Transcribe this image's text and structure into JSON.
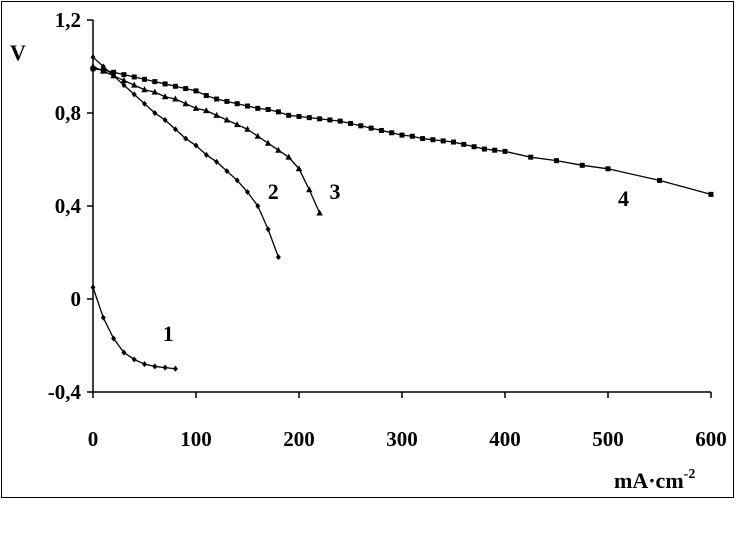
{
  "chart_data": {
    "type": "line",
    "xlabel": "mA·cm",
    "xlabel_superscript": "-2",
    "ylabel": "V",
    "xlim": [
      0,
      600
    ],
    "ylim": [
      -0.4,
      1.2
    ],
    "x_ticks": [
      {
        "value": 0,
        "label": "0"
      },
      {
        "value": 100,
        "label": "100"
      },
      {
        "value": 200,
        "label": "200"
      },
      {
        "value": 300,
        "label": "300"
      },
      {
        "value": 400,
        "label": "400"
      },
      {
        "value": 500,
        "label": "500"
      },
      {
        "value": 600,
        "label": "600"
      }
    ],
    "y_ticks": [
      {
        "value": 1.2,
        "label": "1,2"
      },
      {
        "value": 0.8,
        "label": "0,8"
      },
      {
        "value": 0.4,
        "label": "0,4"
      },
      {
        "value": 0,
        "label": "0"
      },
      {
        "value": -0.4,
        "label": "-0,4"
      }
    ],
    "grid": false,
    "legend": "none",
    "series": [
      {
        "label": "1",
        "label_at": [
          73,
          -0.18
        ],
        "marker": "diamond",
        "x": [
          0,
          10,
          20,
          30,
          40,
          50,
          60,
          70,
          80
        ],
        "y": [
          0.05,
          -0.08,
          -0.17,
          -0.23,
          -0.26,
          -0.28,
          -0.29,
          -0.295,
          -0.3
        ]
      },
      {
        "label": "2",
        "label_at": [
          175,
          0.43
        ],
        "marker": "diamond",
        "x": [
          0,
          10,
          20,
          30,
          40,
          50,
          60,
          70,
          80,
          90,
          100,
          110,
          120,
          130,
          140,
          150,
          160,
          170,
          180
        ],
        "y": [
          1.04,
          1.0,
          0.96,
          0.92,
          0.88,
          0.84,
          0.8,
          0.77,
          0.73,
          0.69,
          0.66,
          0.62,
          0.59,
          0.55,
          0.51,
          0.46,
          0.4,
          0.3,
          0.18
        ]
      },
      {
        "label": "3",
        "label_at": [
          235,
          0.43
        ],
        "marker": "triangle",
        "x": [
          0,
          10,
          20,
          30,
          40,
          50,
          60,
          70,
          80,
          90,
          100,
          110,
          120,
          130,
          140,
          150,
          160,
          170,
          180,
          190,
          200,
          210,
          220
        ],
        "y": [
          1.0,
          0.98,
          0.96,
          0.94,
          0.92,
          0.9,
          0.89,
          0.87,
          0.86,
          0.84,
          0.82,
          0.81,
          0.79,
          0.77,
          0.75,
          0.73,
          0.7,
          0.67,
          0.64,
          0.61,
          0.56,
          0.47,
          0.37
        ]
      },
      {
        "label": "4",
        "label_at": [
          515,
          0.4
        ],
        "marker": "square",
        "x": [
          0,
          10,
          20,
          30,
          40,
          50,
          60,
          70,
          80,
          90,
          100,
          110,
          120,
          130,
          140,
          150,
          160,
          170,
          180,
          190,
          200,
          210,
          220,
          230,
          240,
          250,
          260,
          270,
          280,
          290,
          300,
          310,
          320,
          330,
          340,
          350,
          360,
          370,
          380,
          390,
          400,
          425,
          450,
          475,
          500,
          550,
          600
        ],
        "y": [
          0.99,
          0.985,
          0.975,
          0.965,
          0.955,
          0.945,
          0.935,
          0.925,
          0.915,
          0.905,
          0.895,
          0.875,
          0.86,
          0.85,
          0.84,
          0.83,
          0.82,
          0.815,
          0.805,
          0.79,
          0.785,
          0.78,
          0.775,
          0.77,
          0.765,
          0.755,
          0.745,
          0.735,
          0.725,
          0.715,
          0.705,
          0.7,
          0.69,
          0.685,
          0.68,
          0.675,
          0.665,
          0.655,
          0.645,
          0.64,
          0.635,
          0.61,
          0.595,
          0.575,
          0.56,
          0.51,
          0.45
        ]
      }
    ]
  }
}
